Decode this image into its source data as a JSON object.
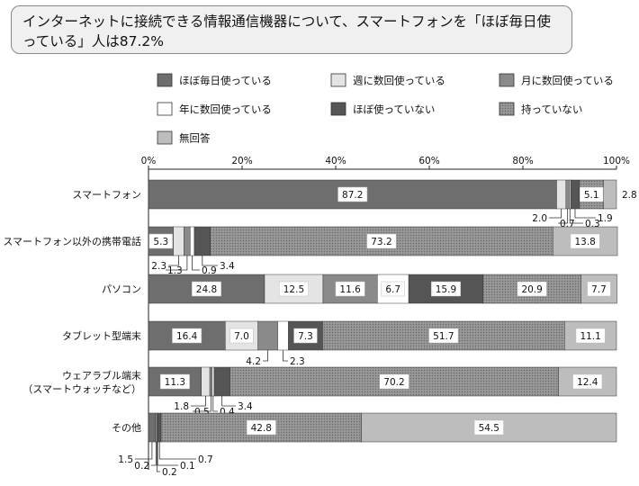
{
  "headline": "インターネットに接続できる情報通信機器について、スマートフォンを「ほぼ毎日使っている」人は87.2%",
  "chart_data": {
    "type": "bar",
    "orientation": "horizontal",
    "stacked": true,
    "xlim": [
      0,
      100
    ],
    "x_ticks": [
      "0%",
      "20%",
      "40%",
      "60%",
      "80%",
      "100%"
    ],
    "grid": false,
    "legend_position": "top",
    "categories": [
      "スマートフォン",
      "スマートフォン以外の携帯電話",
      "パソコン",
      "タブレット型端末",
      "ウェアラブル端末",
      "その他"
    ],
    "categories_line2": [
      "",
      "",
      "",
      "",
      "（スマートウォッチなど）",
      ""
    ],
    "series": [
      {
        "name": "ほぼ毎日使っている",
        "color": "#6e6e6e",
        "pattern": "solid",
        "values": [
          87.2,
          5.3,
          24.8,
          16.4,
          11.3,
          1.5
        ]
      },
      {
        "name": "週に数回使っている",
        "color": "#e4e4e4",
        "pattern": "solid",
        "values": [
          2.0,
          2.3,
          12.5,
          7.0,
          1.8,
          0.2
        ]
      },
      {
        "name": "月に数回使っている",
        "color": "#8a8a8a",
        "pattern": "solid",
        "values": [
          0.7,
          1.3,
          11.6,
          4.2,
          0.5,
          0.2
        ]
      },
      {
        "name": "年に数回使っている",
        "color": "#ffffff",
        "pattern": "solid",
        "values": [
          0.3,
          0.9,
          6.7,
          2.3,
          0.4,
          0.1
        ]
      },
      {
        "name": "ほぼ使っていない",
        "color": "#555555",
        "pattern": "solid",
        "values": [
          1.9,
          3.4,
          15.9,
          7.3,
          3.4,
          0.7
        ]
      },
      {
        "name": "持っていない",
        "color": "#8c8c8c",
        "pattern": "dots",
        "values": [
          5.1,
          73.2,
          20.9,
          51.7,
          70.2,
          42.8
        ]
      },
      {
        "name": "無回答",
        "color": "#bdbdbd",
        "pattern": "solid",
        "values": [
          2.8,
          13.8,
          7.7,
          11.1,
          12.4,
          54.5
        ]
      }
    ],
    "inside_labels": [
      [
        "87.2",
        "",
        "",
        "",
        "",
        "5.1",
        ""
      ],
      [
        "5.3",
        "",
        "",
        "",
        "",
        "73.2",
        "13.8"
      ],
      [
        "24.8",
        "12.5",
        "11.6",
        "6.7",
        "15.9",
        "20.9",
        "7.7"
      ],
      [
        "16.4",
        "7.0",
        "",
        "",
        "7.3",
        "51.7",
        "11.1"
      ],
      [
        "11.3",
        "",
        "",
        "",
        "",
        "70.2",
        "12.4"
      ],
      [
        "",
        "",
        "",
        "",
        "",
        "42.8",
        "54.5"
      ]
    ],
    "small_labels": [
      [
        {
          "series": 1,
          "text": "2.0"
        },
        {
          "series": 2,
          "text": "0.7"
        },
        {
          "series": 3,
          "text": "0.3"
        },
        {
          "series": 4,
          "text": "1.9"
        },
        {
          "series": 6,
          "text": "2.8"
        }
      ],
      [
        {
          "series": 1,
          "text": "2.3"
        },
        {
          "series": 2,
          "text": "1.3"
        },
        {
          "series": 3,
          "text": "0.9"
        },
        {
          "series": 4,
          "text": "3.4"
        }
      ],
      [],
      [
        {
          "series": 2,
          "text": "4.2"
        },
        {
          "series": 3,
          "text": "2.3"
        }
      ],
      [
        {
          "series": 1,
          "text": "1.8"
        },
        {
          "series": 2,
          "text": "0.5"
        },
        {
          "series": 3,
          "text": "0.4"
        },
        {
          "series": 4,
          "text": "3.4"
        }
      ],
      [
        {
          "series": 0,
          "text": "1.5"
        },
        {
          "series": 1,
          "text": "0.2"
        },
        {
          "series": 2,
          "text": "0.2"
        },
        {
          "series": 3,
          "text": "0.1"
        },
        {
          "series": 4,
          "text": "0.7"
        }
      ]
    ]
  }
}
